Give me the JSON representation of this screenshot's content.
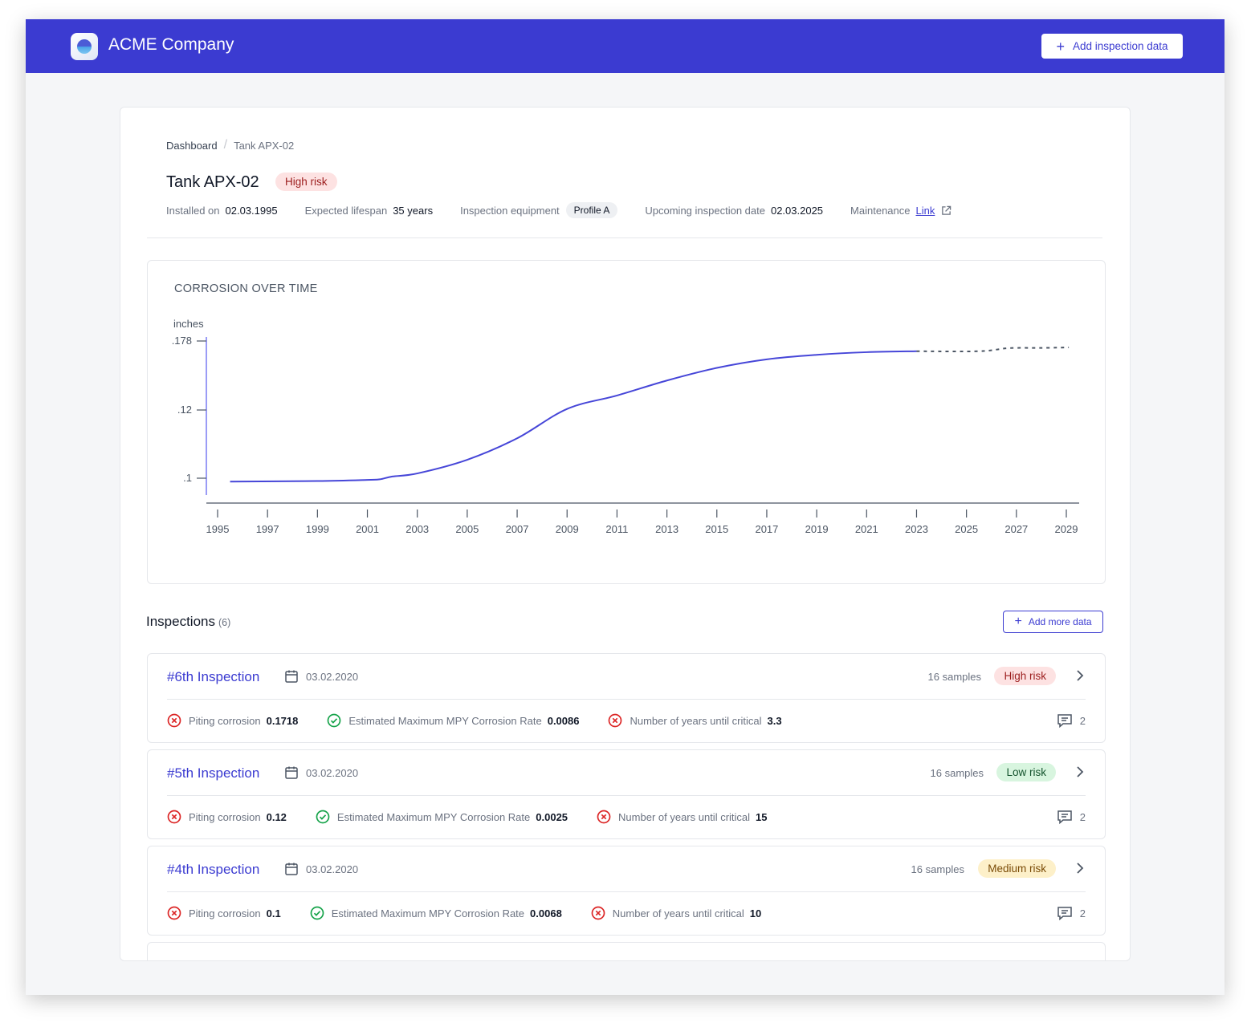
{
  "header": {
    "company": "ACME Company",
    "add_button_label": "Add inspection data"
  },
  "breadcrumb": {
    "items": [
      "Dashboard",
      "Tank APX-02"
    ]
  },
  "tank": {
    "name": "Tank APX-02",
    "risk": "High risk",
    "installed_label": "Installed on",
    "installed_value": "02.03.1995",
    "lifespan_label": "Expected lifespan",
    "lifespan_value": "35 years",
    "equipment_label": "Inspection equipment",
    "equipment_value": "Profile A",
    "upcoming_label": "Upcoming inspection date",
    "upcoming_value": "02.03.2025",
    "maintenance_label": "Maintenance",
    "maintenance_link": "Link"
  },
  "chart_data": {
    "type": "line",
    "title": "CORROSION OVER TIME",
    "ylabel": "inches",
    "yticks": [
      ".178",
      ".12",
      ".1"
    ],
    "ytick_values": [
      0.178,
      0.12,
      0.1
    ],
    "xticks": [
      "1995",
      "1997",
      "1999",
      "2001",
      "2003",
      "2005",
      "2007",
      "2009",
      "2011",
      "2013",
      "2015",
      "2017",
      "2019",
      "2021",
      "2023",
      "2025",
      "2027",
      "2029"
    ],
    "series": [
      {
        "style": "solid",
        "color": "#4646d8",
        "x": [
          1995.5,
          1999,
          2001,
          2001.5,
          2002,
          2003,
          2005,
          2007,
          2009,
          2011,
          2013,
          2015,
          2017,
          2019,
          2021,
          2023
        ],
        "y": [
          0.097,
          0.0975,
          0.0985,
          0.099,
          0.1005,
          0.1014,
          0.1054,
          0.1117,
          0.1209,
          0.1322,
          0.1448,
          0.1554,
          0.1626,
          0.1664,
          0.1686,
          0.1694
        ]
      },
      {
        "style": "dashed",
        "color": "#4b5563",
        "x": [
          2023,
          2025.5,
          2026.7,
          2028,
          2029.1
        ],
        "y": [
          0.1694,
          0.1694,
          0.172,
          0.1722,
          0.1726
        ]
      }
    ]
  },
  "inspections": {
    "title": "Inspections",
    "count": "(6)",
    "add_more_label": "Add more data",
    "items": [
      {
        "title": "#6th Inspection",
        "date": "03.02.2020",
        "samples": "16 samples",
        "risk": "High risk",
        "risk_color": "#fde2e2",
        "m1_label": "Piting corrosion",
        "m1_value": "0.1718",
        "m2_label": "Estimated Maximum MPY Corrosion Rate",
        "m2_value": "0.0086",
        "m3_label": "Number of years until critical",
        "m3_value": "3.3",
        "comments": "2"
      },
      {
        "title": "#5th Inspection",
        "date": "03.02.2020",
        "samples": "16 samples",
        "risk": "Low risk",
        "risk_color": "#d8f5df",
        "m1_label": "Piting corrosion",
        "m1_value": "0.12",
        "m2_label": "Estimated Maximum MPY Corrosion Rate",
        "m2_value": "0.0025",
        "m3_label": "Number of years until critical",
        "m3_value": "15",
        "comments": "2"
      },
      {
        "title": "#4th Inspection",
        "date": "03.02.2020",
        "samples": "16 samples",
        "risk": "Medium risk",
        "risk_color": "#fdf0c9",
        "m1_label": "Piting corrosion",
        "m1_value": "0.1",
        "m2_label": "Estimated Maximum MPY Corrosion Rate",
        "m2_value": "0.0068",
        "m3_label": "Number of years until critical",
        "m3_value": "10",
        "comments": "2"
      }
    ]
  },
  "colors": {
    "brand": "#3b3bd1",
    "error": "#dc2626",
    "success": "#16a34a"
  }
}
